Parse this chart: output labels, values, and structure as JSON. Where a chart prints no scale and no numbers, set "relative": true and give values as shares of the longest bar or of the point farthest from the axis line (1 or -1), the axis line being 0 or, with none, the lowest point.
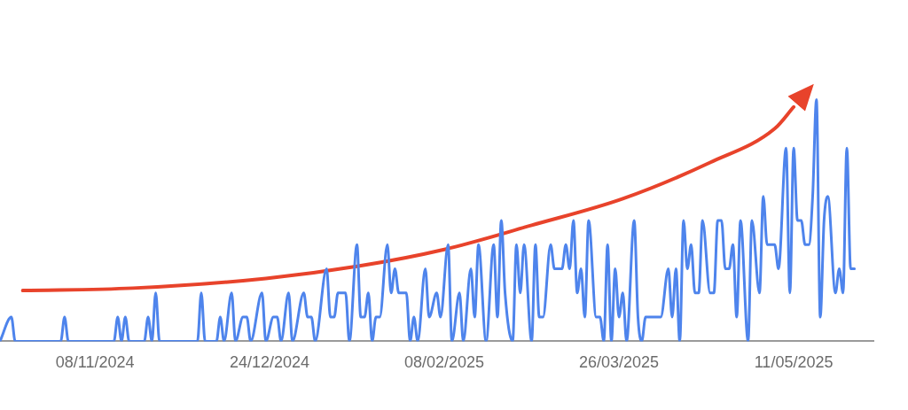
{
  "chart_data": {
    "type": "line",
    "relative": true,
    "marker": "none",
    "xlim": [
      "2024-10-14",
      "2025-06-01"
    ],
    "xticks": [
      {
        "value": "2024-11-08",
        "label": "08/11/2024"
      },
      {
        "value": "2024-12-24",
        "label": "24/12/2024"
      },
      {
        "value": "2025-02-08",
        "label": "08/02/2025"
      },
      {
        "value": "2025-03-26",
        "label": "26/03/2025"
      },
      {
        "value": "2025-05-11",
        "label": "11/05/2025"
      }
    ],
    "x": [
      "2024-10-14",
      "2024-10-17",
      "2024-10-18",
      "2024-10-30",
      "2024-10-31",
      "2024-11-01",
      "2024-11-13",
      "2024-11-14",
      "2024-11-15",
      "2024-11-16",
      "2024-11-17",
      "2024-11-21",
      "2024-11-22",
      "2024-11-23",
      "2024-11-24",
      "2024-11-25",
      "2024-12-05",
      "2024-12-06",
      "2024-12-07",
      "2024-12-10",
      "2024-12-11",
      "2024-12-12",
      "2024-12-14",
      "2024-12-15",
      "2024-12-17",
      "2024-12-18",
      "2024-12-19",
      "2024-12-22",
      "2024-12-23",
      "2024-12-25",
      "2024-12-26",
      "2024-12-27",
      "2024-12-29",
      "2024-12-30",
      "2025-01-02",
      "2025-01-03",
      "2025-01-04",
      "2025-01-05",
      "2025-01-08",
      "2025-01-09",
      "2025-01-10",
      "2025-01-11",
      "2025-01-13",
      "2025-01-14",
      "2025-01-16",
      "2025-01-17",
      "2025-01-18",
      "2025-01-19",
      "2025-01-20",
      "2025-01-21",
      "2025-01-22",
      "2025-01-24",
      "2025-01-25",
      "2025-01-26",
      "2025-01-27",
      "2025-01-29",
      "2025-01-30",
      "2025-01-31",
      "2025-02-01",
      "2025-02-03",
      "2025-02-04",
      "2025-02-06",
      "2025-02-07",
      "2025-02-09",
      "2025-02-10",
      "2025-02-12",
      "2025-02-13",
      "2025-02-15",
      "2025-02-16",
      "2025-02-17",
      "2025-02-19",
      "2025-02-21",
      "2025-02-22",
      "2025-02-23",
      "2025-02-24",
      "2025-02-26",
      "2025-02-27",
      "2025-02-28",
      "2025-03-01",
      "2025-03-03",
      "2025-03-04",
      "2025-03-05",
      "2025-03-06",
      "2025-03-08",
      "2025-03-09",
      "2025-03-11",
      "2025-03-12",
      "2025-03-13",
      "2025-03-14",
      "2025-03-15",
      "2025-03-16",
      "2025-03-17",
      "2025-03-18",
      "2025-03-20",
      "2025-03-21",
      "2025-03-22",
      "2025-03-23",
      "2025-03-24",
      "2025-03-25",
      "2025-03-26",
      "2025-03-27",
      "2025-03-28",
      "2025-03-30",
      "2025-03-31",
      "2025-04-01",
      "2025-04-02",
      "2025-04-06",
      "2025-04-08",
      "2025-04-09",
      "2025-04-10",
      "2025-04-11",
      "2025-04-12",
      "2025-04-13",
      "2025-04-14",
      "2025-04-15",
      "2025-04-16",
      "2025-04-17",
      "2025-04-19",
      "2025-04-20",
      "2025-04-21",
      "2025-04-22",
      "2025-04-23",
      "2025-04-24",
      "2025-04-25",
      "2025-04-26",
      "2025-04-27",
      "2025-04-29",
      "2025-04-30",
      "2025-05-02",
      "2025-05-03",
      "2025-05-04",
      "2025-05-06",
      "2025-05-07",
      "2025-05-09",
      "2025-05-10",
      "2025-05-11",
      "2025-05-12",
      "2025-05-13",
      "2025-05-14",
      "2025-05-15",
      "2025-05-16",
      "2025-05-17",
      "2025-05-18",
      "2025-05-19",
      "2025-05-20",
      "2025-05-22",
      "2025-05-23",
      "2025-05-24",
      "2025-05-25",
      "2025-05-26",
      "2025-05-27"
    ],
    "series": [
      {
        "type": "line",
        "color": "#e8432b",
        "x": [
          "2024-10-20",
          "2024-11-18",
          "2024-12-23",
          "2025-01-16",
          "2025-02-08",
          "2025-03-03",
          "2025-03-27",
          "2025-04-19",
          "2025-05-06",
          "2025-05-11"
        ],
        "values": [
          0.21,
          0.22,
          0.26,
          0.31,
          0.38,
          0.48,
          0.59,
          0.74,
          0.88,
          0.97
        ]
      },
      {
        "color": "#4e84ec",
        "values": [
          0,
          0.1,
          0,
          0,
          0.1,
          0,
          0,
          0.1,
          0,
          0.1,
          0,
          0,
          0.1,
          0,
          0.2,
          0,
          0,
          0.2,
          0,
          0,
          0.1,
          0,
          0.2,
          0,
          0.1,
          0.1,
          0,
          0.2,
          0,
          0.1,
          0.1,
          0,
          0.2,
          0,
          0.2,
          0.1,
          0.1,
          0,
          0.3,
          0.1,
          0.1,
          0.2,
          0.2,
          0,
          0.4,
          0.1,
          0.1,
          0.2,
          0,
          0.1,
          0.1,
          0.4,
          0.2,
          0.3,
          0.2,
          0.2,
          0,
          0.1,
          0,
          0.3,
          0.1,
          0.2,
          0.1,
          0.4,
          0,
          0.2,
          0,
          0.3,
          0.1,
          0.4,
          0,
          0.4,
          0.1,
          0.5,
          0.2,
          0,
          0.4,
          0.2,
          0.4,
          0,
          0.4,
          0.1,
          0.1,
          0.4,
          0.3,
          0.3,
          0.4,
          0.3,
          0.5,
          0.2,
          0.3,
          0.1,
          0.5,
          0.1,
          0.1,
          0,
          0.4,
          0,
          0.3,
          0.1,
          0.2,
          0,
          0.5,
          0.1,
          0,
          0.1,
          0.1,
          0.3,
          0.1,
          0.3,
          0,
          0.5,
          0.3,
          0.4,
          0.2,
          0.2,
          0.5,
          0.2,
          0.2,
          0.5,
          0.5,
          0.3,
          0.3,
          0.4,
          0.1,
          0.5,
          0,
          0.5,
          0.2,
          0.6,
          0.4,
          0.4,
          0.3,
          0.8,
          0.2,
          0.8,
          0.5,
          0.5,
          0.4,
          0.4,
          0.6,
          1,
          0.1,
          0.5,
          0.6,
          0.2,
          0.3,
          0.2,
          0.8,
          0.3,
          0.3
        ]
      }
    ]
  }
}
